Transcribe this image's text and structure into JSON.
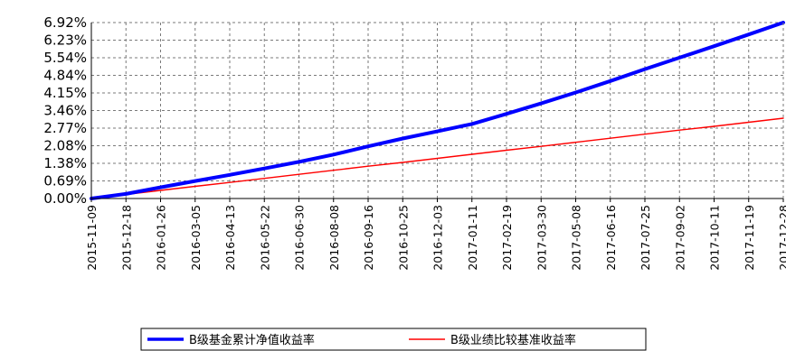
{
  "chart_data": {
    "type": "line",
    "title": "",
    "xlabel": "",
    "ylabel": "",
    "x_ticks": [
      "2015-11-09",
      "2015-12-18",
      "2016-01-26",
      "2016-03-05",
      "2016-04-13",
      "2016-05-22",
      "2016-06-30",
      "2016-08-08",
      "2016-09-16",
      "2016-10-25",
      "2016-12-03",
      "2017-01-11",
      "2017-02-19",
      "2017-03-30",
      "2017-05-08",
      "2017-06-16",
      "2017-07-25",
      "2017-09-02",
      "2017-10-11",
      "2017-11-19",
      "2017-12-28"
    ],
    "y_ticks": [
      "0.00%",
      "0.69%",
      "1.38%",
      "2.08%",
      "2.77%",
      "3.46%",
      "4.15%",
      "4.84%",
      "5.54%",
      "6.23%",
      "6.92%"
    ],
    "ylim": [
      0,
      6.92
    ],
    "grid": true,
    "legend_position": "bottom-center",
    "series": [
      {
        "name": "B级基金累计净值收益率",
        "color": "#0000ff",
        "x": [
          "2015-11-09",
          "2015-12-18",
          "2016-01-26",
          "2016-03-05",
          "2016-04-13",
          "2016-05-22",
          "2016-06-30",
          "2016-08-08",
          "2016-09-16",
          "2016-10-25",
          "2016-12-03",
          "2017-01-11",
          "2017-02-19",
          "2017-03-30",
          "2017-05-08",
          "2017-06-16",
          "2017-07-25",
          "2017-09-02",
          "2017-10-11",
          "2017-11-19",
          "2017-12-28"
        ],
        "values": [
          0.0,
          0.18,
          0.44,
          0.69,
          0.93,
          1.18,
          1.44,
          1.73,
          2.05,
          2.36,
          2.64,
          2.93,
          3.33,
          3.74,
          4.17,
          4.62,
          5.09,
          5.54,
          5.99,
          6.45,
          6.92
        ]
      },
      {
        "name": "B级业绩比较基准收益率",
        "color": "#ff0000",
        "x": [
          "2015-11-09",
          "2015-12-18",
          "2016-01-26",
          "2016-03-05",
          "2016-04-13",
          "2016-05-22",
          "2016-06-30",
          "2016-08-08",
          "2016-09-16",
          "2016-10-25",
          "2016-12-03",
          "2017-01-11",
          "2017-02-19",
          "2017-03-30",
          "2017-05-08",
          "2017-06-16",
          "2017-07-25",
          "2017-09-02",
          "2017-10-11",
          "2017-11-19",
          "2017-12-28"
        ],
        "values": [
          0.0,
          0.16,
          0.32,
          0.48,
          0.63,
          0.79,
          0.95,
          1.11,
          1.27,
          1.42,
          1.58,
          1.74,
          1.9,
          2.05,
          2.21,
          2.37,
          2.53,
          2.69,
          2.84,
          3.0,
          3.16
        ]
      }
    ]
  }
}
